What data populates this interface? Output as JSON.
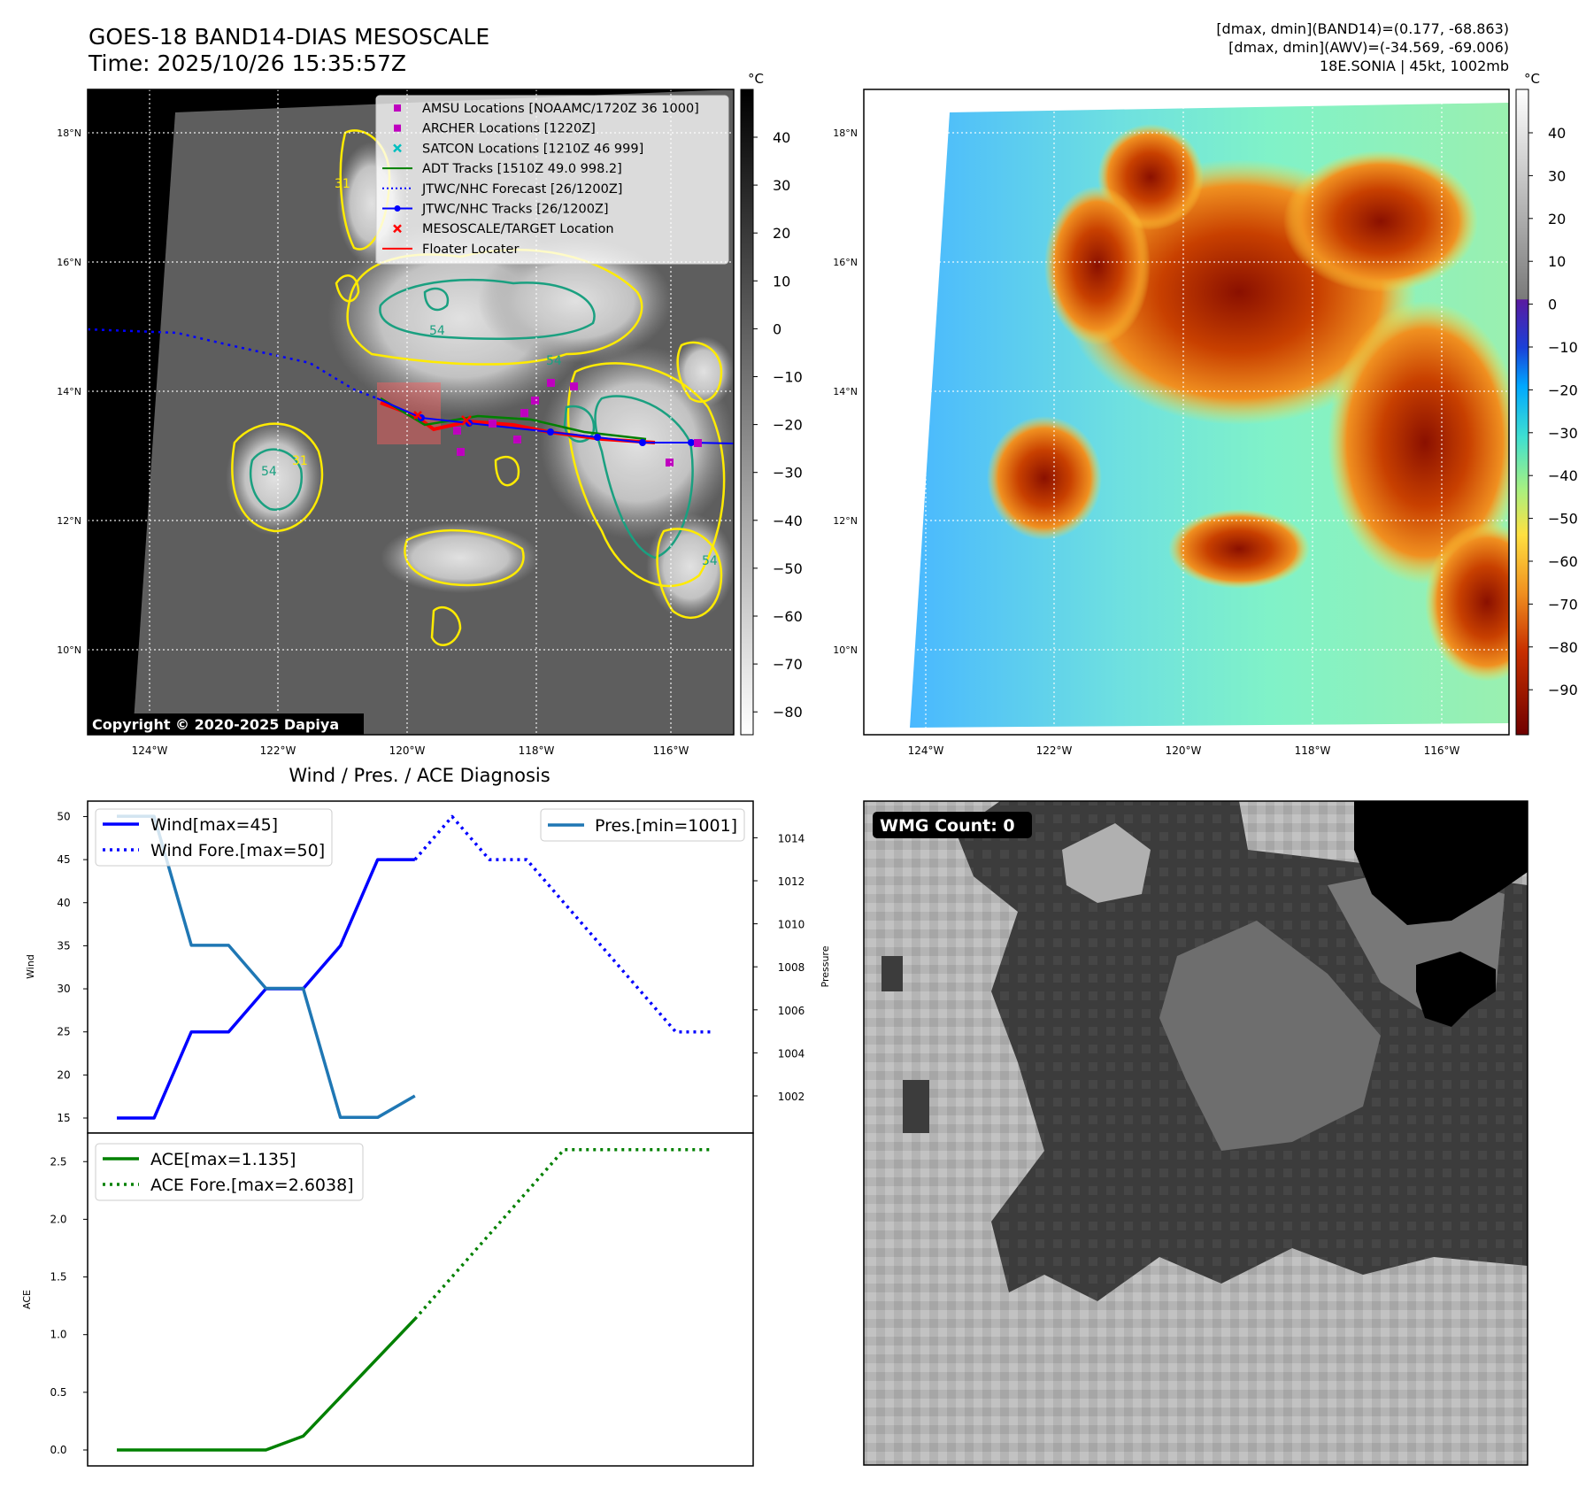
{
  "header": {
    "title_line1": "GOES-18 BAND14-DIAS MESOSCALE",
    "title_line2": "Time: 2025/10/26 15:35:57Z",
    "stats_line1": "[dmax, dmin](BAND14)=(0.177, -68.863)",
    "stats_line2": "[dmax, dmin](AWV)=(-34.569, -69.006)",
    "stats_line3": "18E.SONIA | 45kt, 1002mb"
  },
  "map_ticks": {
    "lat_labels": [
      "18°N",
      "16°N",
      "14°N",
      "12°N",
      "10°N"
    ],
    "lon_labels": [
      "124°W",
      "122°W",
      "120°W",
      "118°W",
      "116°W"
    ]
  },
  "ir_panel": {
    "colorbar_unit": "°C",
    "colorbar_ticks": [
      "40",
      "30",
      "20",
      "10",
      "0",
      "−10",
      "−20",
      "−30",
      "−40",
      "−50",
      "−60",
      "−70",
      "−80"
    ],
    "copyright": "Copyright © 2020-2025 Dapiya",
    "contour_labels": [
      "31",
      "54",
      "54",
      "54",
      "31",
      "54"
    ],
    "legend": [
      {
        "label": "AMSU Locations [NOAAMC/1720Z 36 1000]",
        "marker": "square",
        "color": "#bf00bf"
      },
      {
        "label": "ARCHER Locations [1220Z]",
        "marker": "square",
        "color": "#bf00bf"
      },
      {
        "label": "SATCON Locations [1210Z 46 999]",
        "marker": "x",
        "color": "#00bfbf"
      },
      {
        "label": "ADT Tracks [1510Z 49.0 998.2]",
        "marker": "line",
        "color": "#008000"
      },
      {
        "label": "JTWC/NHC Forecast [26/1200Z]",
        "marker": "dotted",
        "color": "#0000ff"
      },
      {
        "label": "JTWC/NHC Tracks [26/1200Z]",
        "marker": "line-dot",
        "color": "#0000ff"
      },
      {
        "label": "MESOSCALE/TARGET Location",
        "marker": "x",
        "color": "#ff0000"
      },
      {
        "label": "Floater Locater",
        "marker": "line",
        "color": "#ff0000"
      }
    ]
  },
  "awv_panel": {
    "colorbar_unit": "°C",
    "colorbar_ticks": [
      "40",
      "30",
      "20",
      "10",
      "0",
      "−10",
      "−20",
      "−30",
      "−40",
      "−50",
      "−60",
      "−70",
      "−80",
      "−90"
    ]
  },
  "diag_panel": {
    "title": "Wind / Pres. / ACE Diagnosis",
    "wind_axis_label": "Wind",
    "pressure_axis_label": "Pressure",
    "ace_axis_label": "ACE",
    "wind_ticks": [
      "50",
      "45",
      "40",
      "35",
      "30",
      "25",
      "20",
      "15"
    ],
    "pressure_ticks": [
      "1014",
      "1012",
      "1010",
      "1008",
      "1006",
      "1004",
      "1002"
    ],
    "ace_ticks": [
      "2.5",
      "2.0",
      "1.5",
      "1.0",
      "0.5",
      "0.0"
    ],
    "legend_wind": "Wind[max=45]",
    "legend_wind_fore": "Wind Fore.[max=50]",
    "legend_pres": "Pres.[min=1001]",
    "legend_ace": "ACE[max=1.135]",
    "legend_ace_fore": "ACE Fore.[max=2.6038]"
  },
  "wmg_panel": {
    "label": "WMG Count: 0"
  },
  "chart_data": [
    {
      "type": "line",
      "title": "Wind / Pres. / ACE Diagnosis",
      "ylabel": "Wind",
      "ylim": [
        14,
        51
      ],
      "series": [
        {
          "name": "Wind[max=45]",
          "color": "#0000ff",
          "style": "solid",
          "x": [
            0,
            1,
            2,
            3,
            4,
            5,
            6,
            7,
            8
          ],
          "values": [
            15,
            15,
            25,
            25,
            30,
            30,
            35,
            45,
            45
          ]
        },
        {
          "name": "Wind Fore.[max=50]",
          "color": "#0000ff",
          "style": "dotted",
          "x": [
            8,
            9,
            10,
            11,
            12,
            13,
            14,
            15,
            16
          ],
          "values": [
            45,
            50,
            45,
            45,
            40,
            35,
            30,
            25,
            25
          ]
        }
      ]
    },
    {
      "type": "line",
      "ylabel": "Pressure",
      "ylim": [
        1000,
        1015
      ],
      "series": [
        {
          "name": "Pres.[min=1001]",
          "color": "#1f77b4",
          "style": "solid",
          "x": [
            0,
            1,
            2,
            3,
            4,
            5,
            6,
            7,
            8
          ],
          "values": [
            1015,
            1015,
            1009,
            1009,
            1007,
            1007,
            1001,
            1001,
            1002
          ]
        }
      ]
    },
    {
      "type": "line",
      "ylabel": "ACE",
      "ylim": [
        -0.1,
        2.7
      ],
      "series": [
        {
          "name": "ACE[max=1.135]",
          "color": "#008000",
          "style": "solid",
          "x": [
            0,
            4,
            5,
            8
          ],
          "values": [
            0.0,
            0.0,
            0.12,
            1.135
          ]
        },
        {
          "name": "ACE Fore.[max=2.6038]",
          "color": "#008000",
          "style": "dotted",
          "x": [
            8,
            12,
            16
          ],
          "values": [
            1.135,
            2.6038,
            2.6038
          ]
        }
      ]
    }
  ]
}
